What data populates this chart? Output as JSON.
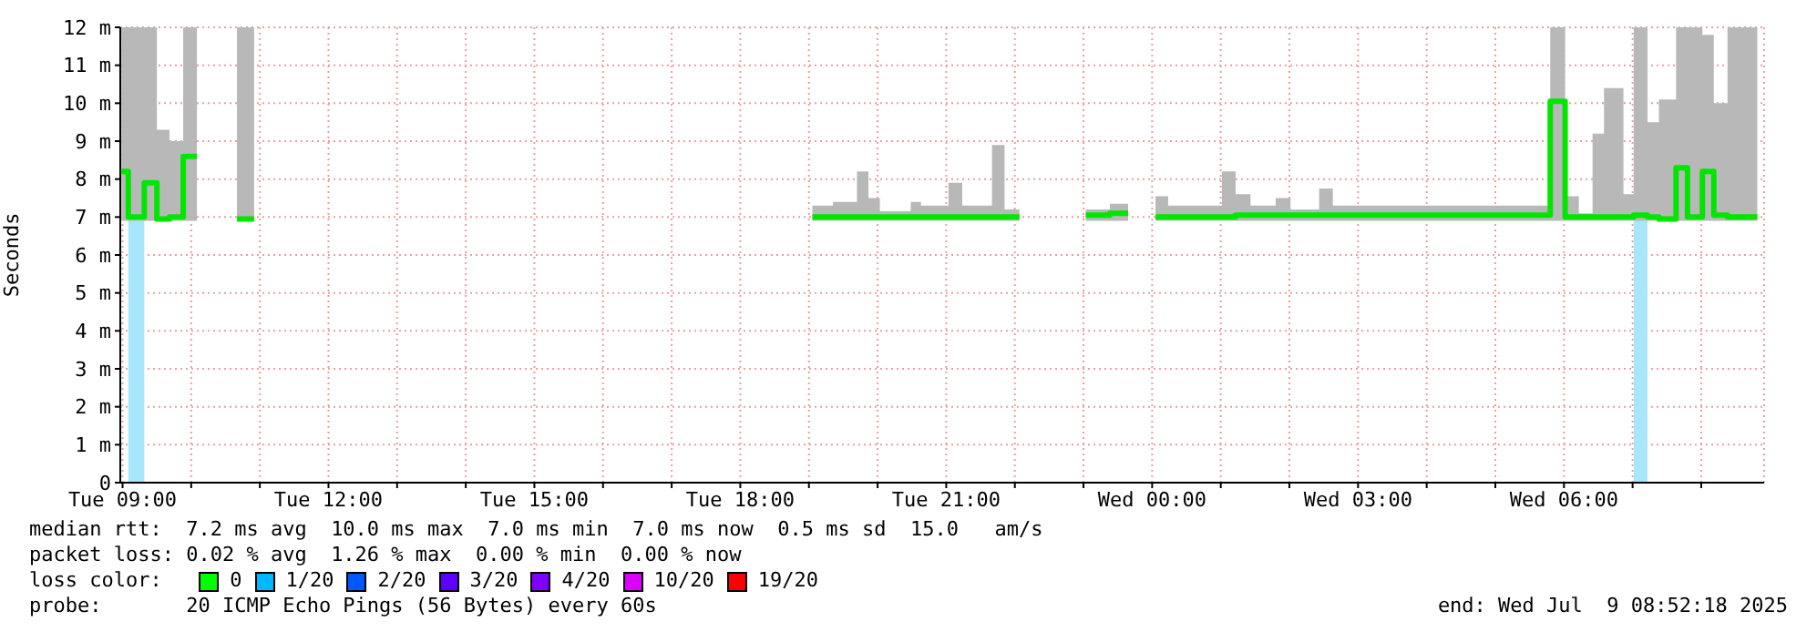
{
  "chart_data": {
    "type": "step",
    "ylabel": "Seconds",
    "x": [
      "2025-07-08T08:59",
      "2025-07-08T09:05",
      "2025-07-08T09:19",
      "2025-07-08T09:30",
      "2025-07-08T09:41",
      "2025-07-08T09:53",
      "2025-07-08T10:05",
      "2025-07-08T10:20",
      "2025-07-08T10:40",
      "2025-07-08T10:55",
      "2025-07-08T15:00",
      "2025-07-08T19:03",
      "2025-07-08T19:21",
      "2025-07-08T19:42",
      "2025-07-08T19:52",
      "2025-07-08T20:02",
      "2025-07-08T20:29",
      "2025-07-08T20:38",
      "2025-07-08T21:02",
      "2025-07-08T21:14",
      "2025-07-08T21:40",
      "2025-07-08T21:51",
      "2025-07-08T22:04",
      "2025-07-08T22:30",
      "2025-07-08T23:02",
      "2025-07-08T23:23",
      "2025-07-08T23:39",
      "2025-07-08T23:50",
      "2025-07-09T00:03",
      "2025-07-09T00:14",
      "2025-07-09T01:01",
      "2025-07-09T01:13",
      "2025-07-09T01:26",
      "2025-07-09T01:48",
      "2025-07-09T02:01",
      "2025-07-09T02:26",
      "2025-07-09T02:38",
      "2025-07-09T05:48",
      "2025-07-09T06:01",
      "2025-07-09T06:13",
      "2025-07-09T06:25",
      "2025-07-09T06:35",
      "2025-07-09T06:52",
      "2025-07-09T07:01",
      "2025-07-09T07:13",
      "2025-07-09T07:23",
      "2025-07-09T07:38",
      "2025-07-09T07:48",
      "2025-07-09T08:01",
      "2025-07-09T08:11",
      "2025-07-09T08:23",
      "2025-07-09T08:49"
    ],
    "series": [
      {
        "color": "#00e600",
        "values": [
          8.2,
          7.0,
          7.9,
          6.95,
          7.0,
          8.6,
          8.6,
          null,
          6.95,
          6.95,
          null,
          7.0,
          7.0,
          7.0,
          7.0,
          7.0,
          7.0,
          7.0,
          7.0,
          7.0,
          7.0,
          7.0,
          7.0,
          null,
          7.05,
          7.1,
          7.1,
          null,
          7.0,
          7.0,
          7.0,
          7.05,
          7.05,
          7.05,
          7.05,
          7.05,
          7.05,
          10.05,
          7.0,
          7.0,
          7.0,
          7.0,
          7.0,
          7.05,
          7.0,
          6.95,
          8.3,
          7.0,
          8.2,
          7.05,
          7.0,
          7.0
        ],
        "lower": [
          6.9,
          6.9,
          6.9,
          6.9,
          6.9,
          6.9,
          6.9,
          null,
          6.9,
          6.9,
          null,
          6.9,
          6.9,
          6.9,
          6.9,
          6.9,
          6.9,
          6.9,
          6.9,
          6.9,
          6.9,
          6.9,
          6.9,
          null,
          6.9,
          6.9,
          6.9,
          null,
          6.9,
          6.9,
          6.9,
          6.9,
          6.9,
          6.9,
          6.9,
          6.9,
          6.9,
          6.9,
          6.9,
          6.9,
          6.9,
          6.9,
          6.9,
          6.9,
          6.9,
          6.9,
          6.9,
          6.9,
          6.9,
          6.9,
          6.9,
          6.9
        ],
        "upper": [
          12,
          12,
          12,
          9.3,
          9.0,
          12,
          12,
          null,
          12,
          12,
          null,
          7.3,
          7.4,
          8.2,
          7.5,
          7.15,
          7.4,
          7.3,
          7.9,
          7.3,
          8.9,
          7.2,
          7.2,
          null,
          7.2,
          7.35,
          7.35,
          null,
          7.55,
          7.3,
          8.2,
          7.6,
          7.3,
          7.5,
          7.2,
          7.75,
          7.3,
          12,
          7.55,
          7.1,
          9.2,
          10.4,
          7.6,
          12,
          9.5,
          10.1,
          12,
          12,
          11.8,
          10.0,
          12,
          12
        ]
      }
    ],
    "bands": [
      {
        "axis": "x",
        "from": "2025-07-08T09:05",
        "to": "2025-07-08T09:19",
        "color": "#a8e6fc"
      },
      {
        "axis": "x",
        "from": "2025-07-09T07:01",
        "to": "2025-07-09T07:13",
        "color": "#a8e6fc"
      }
    ],
    "xlim": [
      "2025-07-08T08:58",
      "2025-07-09T08:55"
    ],
    "xticks": [
      {
        "value": "2025-07-08T09:00",
        "label": "Tue 09:00"
      },
      {
        "value": "2025-07-08T10:00",
        "label": null
      },
      {
        "value": "2025-07-08T11:00",
        "label": null
      },
      {
        "value": "2025-07-08T12:00",
        "label": "Tue 12:00"
      },
      {
        "value": "2025-07-08T13:00",
        "label": null
      },
      {
        "value": "2025-07-08T14:00",
        "label": null
      },
      {
        "value": "2025-07-08T15:00",
        "label": "Tue 15:00"
      },
      {
        "value": "2025-07-08T16:00",
        "label": null
      },
      {
        "value": "2025-07-08T17:00",
        "label": null
      },
      {
        "value": "2025-07-08T18:00",
        "label": "Tue 18:00"
      },
      {
        "value": "2025-07-08T19:00",
        "label": null
      },
      {
        "value": "2025-07-08T20:00",
        "label": null
      },
      {
        "value": "2025-07-08T21:00",
        "label": "Tue 21:00"
      },
      {
        "value": "2025-07-08T22:00",
        "label": null
      },
      {
        "value": "2025-07-08T23:00",
        "label": null
      },
      {
        "value": "2025-07-09T00:00",
        "label": "Wed 00:00"
      },
      {
        "value": "2025-07-09T01:00",
        "label": null
      },
      {
        "value": "2025-07-09T02:00",
        "label": null
      },
      {
        "value": "2025-07-09T03:00",
        "label": "Wed 03:00"
      },
      {
        "value": "2025-07-09T04:00",
        "label": null
      },
      {
        "value": "2025-07-09T05:00",
        "label": null
      },
      {
        "value": "2025-07-09T06:00",
        "label": "Wed 06:00"
      },
      {
        "value": "2025-07-09T07:00",
        "label": null
      },
      {
        "value": "2025-07-09T08:00",
        "label": null
      }
    ],
    "ylim": [
      0,
      12
    ],
    "yticks": [
      0,
      {
        "value": 1,
        "label": "1 m"
      },
      {
        "value": 2,
        "label": "2 m"
      },
      {
        "value": 3,
        "label": "3 m"
      },
      {
        "value": 4,
        "label": "4 m"
      },
      {
        "value": 5,
        "label": "5 m"
      },
      {
        "value": 6,
        "label": "6 m"
      },
      {
        "value": 7,
        "label": "7 m"
      },
      {
        "value": 8,
        "label": "8 m"
      },
      {
        "value": 9,
        "label": "9 m"
      },
      {
        "value": 10,
        "label": "10 m"
      },
      {
        "value": 11,
        "label": "11 m"
      },
      {
        "value": 12,
        "label": "12 m"
      }
    ],
    "grid": true,
    "legend": false,
    "marker": "none",
    "annotations": [
      "median rtt:  7.2 ms avg  10.0 ms max  7.0 ms min  7.0 ms now  0.5 ms sd  15.0   am/s",
      "packet loss: 0.02 % avg  1.26 % max  0.00 % min  0.00 % now",
      "loss color:",
      "0",
      "1/20",
      "2/20",
      "3/20",
      "4/20",
      "10/20",
      "19/20",
      "probe:       20 ICMP Echo Pings (56 Bytes) every 60s",
      "end: Wed Jul  9 08:52:18 2025"
    ]
  }
}
